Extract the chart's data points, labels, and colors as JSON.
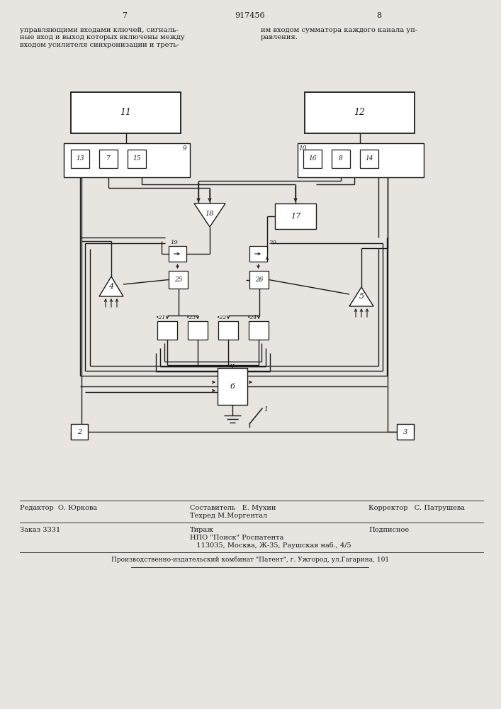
{
  "bg_color": "#e8e4df",
  "lc": "#1a1a1a",
  "page_num_left": "7",
  "page_num_center": "917456",
  "page_num_right": "8",
  "text_left": "управляющими входами ключей, сигналь-\nные вход и выход которых включены между\nвходом усилителя синхронизации и треть-",
  "text_right": "им входом сумматора каждого канала уп-\nравления.",
  "footer": {
    "editor": "Редактор  О. Юркова",
    "compiler": "Составитель   Е. Мухин",
    "techred": "Техред М.Моргентал",
    "corrector": "Корректор   С. Патрушева",
    "order": "Заказ 3331",
    "tirazh": "Тираж",
    "npo": "НПО \"Поиск\" Роспатента",
    "address": "   113035, Москва, Ж-35, Раушская наб., 4/5",
    "podpisnoe": "Подписное",
    "patent": "Производственно-издательский комбинат \"Патент\", г. Ужгород, ул.Гагарина, 101"
  }
}
